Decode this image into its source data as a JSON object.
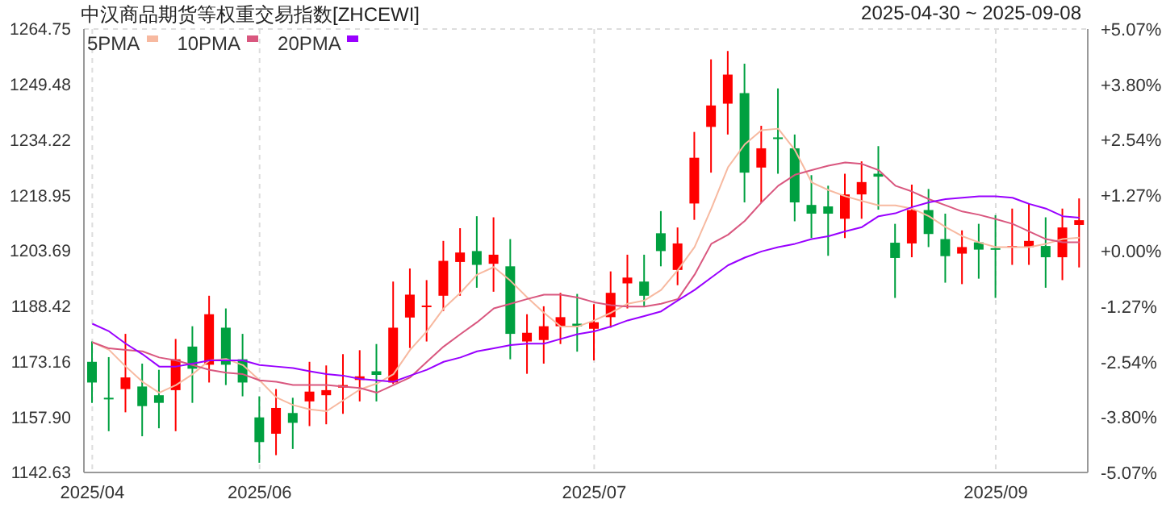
{
  "chart_data": {
    "type": "candlestick",
    "title": "中汉商品期货等权重交易指数[ZHCEWI]",
    "subtitle": "2025-04-30 ~ 2025-09-08",
    "categories": [
      "2025/04",
      null,
      null,
      null,
      null,
      null,
      null,
      null,
      null,
      null,
      "2025/06",
      null,
      null,
      null,
      null,
      null,
      null,
      null,
      null,
      null,
      null,
      null,
      null,
      null,
      null,
      null,
      null,
      null,
      null,
      null,
      "2025/07",
      null,
      null,
      null,
      null,
      null,
      null,
      null,
      null,
      null,
      null,
      null,
      null,
      null,
      null,
      null,
      null,
      null,
      null,
      null,
      null,
      null,
      null,
      null,
      "2025/09",
      null,
      null,
      null,
      null,
      null
    ],
    "ohlc": [
      [
        1173.1,
        1178.7,
        1161.8,
        1167.4
      ],
      [
        1163.2,
        1174.4,
        1154.0,
        1162.9
      ],
      [
        1165.6,
        1180.8,
        1159.2,
        1168.8
      ],
      [
        1166.3,
        1172.6,
        1152.6,
        1160.9
      ],
      [
        1163.9,
        1170.9,
        1154.8,
        1161.8
      ],
      [
        1165.3,
        1179.4,
        1154.0,
        1173.8
      ],
      [
        1177.3,
        1182.9,
        1161.8,
        1171.2
      ],
      [
        1172.3,
        1191.3,
        1167.4,
        1186.2
      ],
      [
        1182.5,
        1187.8,
        1166.7,
        1172.3
      ],
      [
        1173.8,
        1180.8,
        1163.6,
        1167.4
      ],
      [
        1157.8,
        1163.6,
        1145.3,
        1151.0
      ],
      [
        1153.3,
        1165.6,
        1147.4,
        1160.4
      ],
      [
        1159.0,
        1163.2,
        1149.1,
        1156.3
      ],
      [
        1162.2,
        1173.1,
        1155.4,
        1164.9
      ],
      [
        1163.9,
        1172.1,
        1155.9,
        1165.3
      ],
      [
        1166.0,
        1175.2,
        1158.8,
        1166.7
      ],
      [
        1168.1,
        1176.3,
        1162.2,
        1169.1
      ],
      [
        1170.5,
        1178.0,
        1162.2,
        1169.5
      ],
      [
        1167.4,
        1195.2,
        1167.0,
        1182.5
      ],
      [
        1185.3,
        1198.8,
        1176.9,
        1191.6
      ],
      [
        1188.4,
        1195.6,
        1178.7,
        1188.6
      ],
      [
        1191.3,
        1206.4,
        1187.1,
        1200.9
      ],
      [
        1200.6,
        1209.9,
        1191.3,
        1203.2
      ],
      [
        1203.6,
        1213.2,
        1193.5,
        1199.8
      ],
      [
        1200.1,
        1212.9,
        1192.4,
        1202.6
      ],
      [
        1199.4,
        1206.9,
        1173.8,
        1180.8
      ],
      [
        1178.7,
        1186.2,
        1169.8,
        1181.1
      ],
      [
        1179.1,
        1188.4,
        1172.6,
        1182.9
      ],
      [
        1182.9,
        1192.1,
        1178.0,
        1185.4
      ],
      [
        1183.6,
        1191.8,
        1175.9,
        1182.9
      ],
      [
        1182.2,
        1189.0,
        1173.5,
        1184.0
      ],
      [
        1185.4,
        1198.0,
        1182.5,
        1192.1
      ],
      [
        1194.7,
        1202.6,
        1187.8,
        1196.3
      ],
      [
        1195.2,
        1202.6,
        1188.3,
        1191.3
      ],
      [
        1208.5,
        1214.6,
        1199.4,
        1203.6
      ],
      [
        1198.4,
        1210.1,
        1194.2,
        1205.7
      ],
      [
        1216.7,
        1236.4,
        1212.2,
        1229.3
      ],
      [
        1237.8,
        1256.4,
        1225.2,
        1243.7
      ],
      [
        1244.2,
        1258.7,
        1235.7,
        1252.2
      ],
      [
        1247.1,
        1255.2,
        1217.0,
        1225.2
      ],
      [
        1226.6,
        1238.1,
        1217.0,
        1231.9
      ],
      [
        1234.9,
        1248.4,
        1224.9,
        1234.6
      ],
      [
        1231.9,
        1235.7,
        1211.8,
        1217.0
      ],
      [
        1216.3,
        1224.5,
        1207.2,
        1213.9
      ],
      [
        1215.9,
        1221.6,
        1202.3,
        1213.9
      ],
      [
        1212.5,
        1224.9,
        1207.2,
        1219.2
      ],
      [
        1219.2,
        1228.3,
        1212.5,
        1222.6
      ],
      [
        1224.9,
        1232.5,
        1215.0,
        1224.1
      ],
      [
        1205.9,
        1211.1,
        1190.7,
        1201.7
      ],
      [
        1205.7,
        1221.9,
        1201.9,
        1214.9
      ],
      [
        1214.9,
        1220.7,
        1204.7,
        1208.3
      ],
      [
        1206.9,
        1213.9,
        1194.9,
        1202.2
      ],
      [
        1202.9,
        1209.3,
        1194.5,
        1204.7
      ],
      [
        1206.0,
        1211.1,
        1196.0,
        1204.0
      ],
      [
        1204.4,
        1213.5,
        1190.7,
        1204.0
      ],
      [
        1204.7,
        1215.3,
        1199.8,
        1205.0
      ],
      [
        1204.7,
        1216.7,
        1199.8,
        1206.4
      ],
      [
        1205.0,
        1212.9,
        1193.5,
        1201.9
      ],
      [
        1201.9,
        1215.3,
        1195.6,
        1210.1
      ],
      [
        1210.8,
        1218.1,
        1199.1,
        1212.1
      ]
    ],
    "series": [
      {
        "type": "line",
        "name": "5PMA",
        "color": "#f7b9a0",
        "values": [
          1178.5,
          1176.4,
          1171.8,
          1167.6,
          1164.6,
          1166.7,
          1169.7,
          1173.5,
          1173.9,
          1172.2,
          1168.0,
          1163.3,
          1161.2,
          1160.0,
          1159.5,
          1162.5,
          1165.5,
          1167.1,
          1169.7,
          1176.4,
          1181.5,
          1187.8,
          1192.1,
          1197.1,
          1199.2,
          1195.4,
          1190.8,
          1186.6,
          1182.8,
          1182.8,
          1184.5,
          1186.6,
          1189.1,
          1190.0,
          1192.9,
          1198.4,
          1204.7,
          1215.3,
          1226.7,
          1233.0,
          1236.9,
          1237.3,
          1231.4,
          1222.5,
          1220.4,
          1218.7,
          1217.4,
          1216.2,
          1216.2,
          1215.3,
          1213.2,
          1210.2,
          1207.7,
          1206.0,
          1204.7,
          1204.7,
          1204.7,
          1205.6,
          1206.9,
          1207.3
        ]
      },
      {
        "type": "line",
        "name": "10PMA",
        "color": "#d9577f",
        "values": [
          1178.5,
          1176.8,
          1176.4,
          1176.0,
          1174.3,
          1173.5,
          1172.2,
          1170.9,
          1170.1,
          1169.7,
          1168.0,
          1167.6,
          1166.7,
          1166.7,
          1166.7,
          1166.3,
          1165.9,
          1164.6,
          1166.7,
          1168.8,
          1173.1,
          1177.3,
          1180.7,
          1184.0,
          1187.8,
          1189.1,
          1190.4,
          1191.6,
          1191.6,
          1190.8,
          1189.5,
          1188.7,
          1188.3,
          1188.3,
          1189.1,
          1190.4,
          1197.1,
          1205.6,
          1208.1,
          1211.9,
          1217.0,
          1221.6,
          1224.6,
          1225.9,
          1227.1,
          1228.0,
          1227.6,
          1225.9,
          1221.6,
          1220.0,
          1217.9,
          1216.2,
          1214.5,
          1213.6,
          1212.4,
          1211.1,
          1209.0,
          1206.9,
          1206.0,
          1206.0
        ]
      },
      {
        "type": "line",
        "name": "20PMA",
        "color": "#9900ff",
        "values": [
          1183.6,
          1181.5,
          1178.1,
          1175.2,
          1171.8,
          1171.8,
          1172.6,
          1173.5,
          1173.5,
          1173.5,
          1172.2,
          1171.8,
          1171.4,
          1170.5,
          1169.7,
          1169.3,
          1168.4,
          1168.0,
          1167.6,
          1169.3,
          1170.9,
          1173.1,
          1174.3,
          1176.0,
          1176.8,
          1177.7,
          1178.1,
          1178.1,
          1179.4,
          1180.7,
          1181.5,
          1182.8,
          1184.5,
          1185.7,
          1187.0,
          1190.0,
          1192.9,
          1196.3,
          1199.7,
          1201.8,
          1203.5,
          1204.7,
          1205.6,
          1206.9,
          1207.7,
          1209.0,
          1210.2,
          1213.2,
          1214.0,
          1215.7,
          1217.0,
          1217.9,
          1218.3,
          1218.7,
          1218.7,
          1218.3,
          1216.6,
          1215.3,
          1213.2,
          1212.8
        ]
      }
    ],
    "ylim": [
      1142.63,
      1264.75
    ],
    "yticks": [
      {
        "value": 1142.63,
        "label": "1142.63"
      },
      {
        "value": 1157.9,
        "label": "1157.90"
      },
      {
        "value": 1173.16,
        "label": "1173.16"
      },
      {
        "value": 1188.42,
        "label": "1188.42"
      },
      {
        "value": 1203.69,
        "label": "1203.69"
      },
      {
        "value": 1218.95,
        "label": "1218.95"
      },
      {
        "value": 1234.22,
        "label": "1234.22"
      },
      {
        "value": 1249.48,
        "label": "1249.48"
      },
      {
        "value": 1264.75,
        "label": "1264.75"
      }
    ],
    "y2lim": [
      -5.07,
      5.07
    ],
    "y2ticks": [
      {
        "value": -5.07,
        "label": "-5.07%"
      },
      {
        "value": -3.8,
        "label": "-3.80%"
      },
      {
        "value": -2.54,
        "label": "-2.54%"
      },
      {
        "value": -1.27,
        "label": "-1.27%"
      },
      {
        "value": 0,
        "label": "+0.00%"
      },
      {
        "value": 1.27,
        "label": "+1.27%"
      },
      {
        "value": 2.54,
        "label": "+2.54%"
      },
      {
        "value": 3.8,
        "label": "+3.80%"
      },
      {
        "value": 5.07,
        "label": "+5.07%"
      }
    ],
    "grid": true,
    "legend": "top left",
    "marker": "none"
  }
}
